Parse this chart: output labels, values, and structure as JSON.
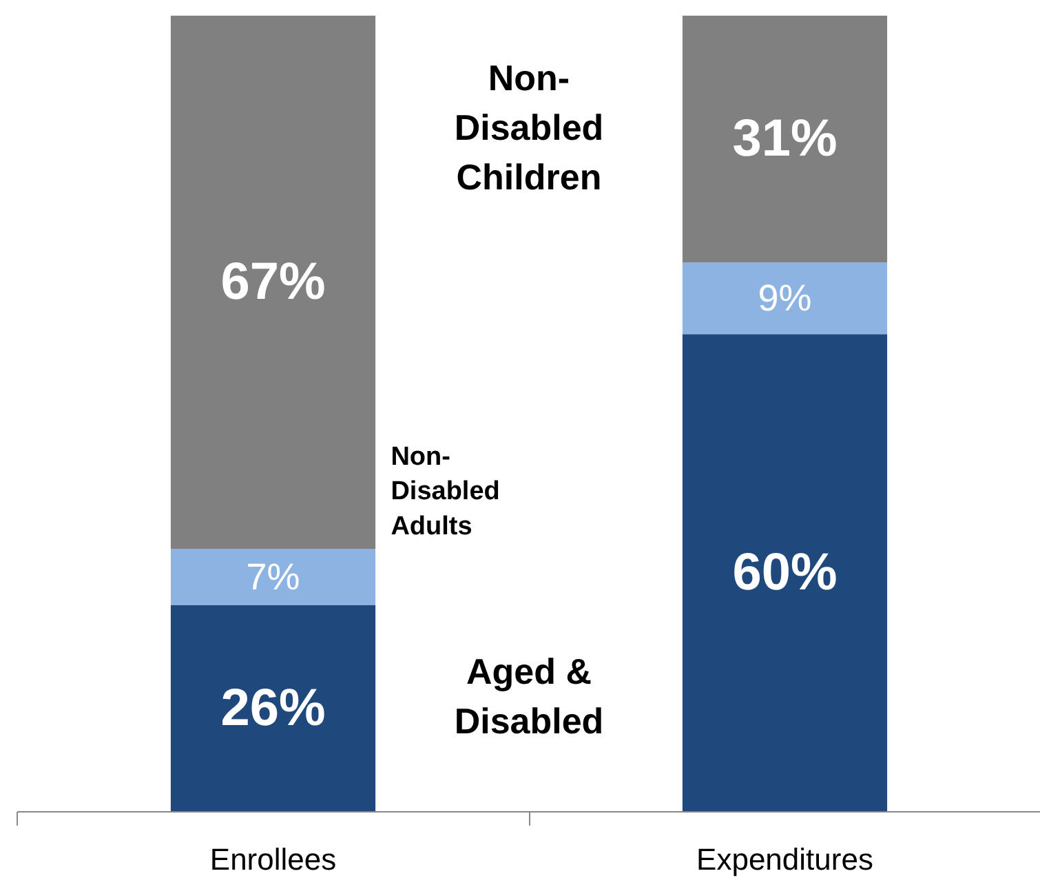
{
  "chart_data": {
    "type": "bar",
    "stacked": true,
    "categories": [
      "Enrollees",
      "Expenditures"
    ],
    "series": [
      {
        "name": "Aged & Disabled",
        "color": "#1f497d",
        "values": [
          26,
          60
        ],
        "value_labels": [
          "26%",
          "60%"
        ]
      },
      {
        "name": "Non-Disabled Adults",
        "color": "#8db3e2",
        "values": [
          7,
          9
        ],
        "value_labels": [
          "7%",
          "9%"
        ]
      },
      {
        "name": "Non-Disabled Children",
        "color": "#808080",
        "values": [
          67,
          31
        ],
        "value_labels": [
          "67%",
          "31%"
        ]
      }
    ]
  }
}
